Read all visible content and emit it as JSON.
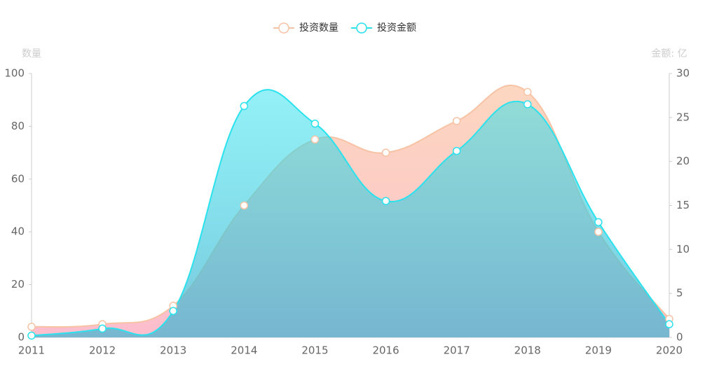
{
  "chart_data": {
    "type": "area",
    "categories": [
      "2011",
      "2012",
      "2013",
      "2014",
      "2015",
      "2016",
      "2017",
      "2018",
      "2019",
      "2020"
    ],
    "series": [
      {
        "name": "投资数量",
        "color": "#f7c3a4",
        "values": [
          4,
          5,
          12,
          50,
          75,
          70,
          82,
          93,
          40,
          7
        ]
      },
      {
        "name": "投资金额",
        "color": "#2ae2ee",
        "axis": "y2",
        "values": [
          0.2,
          1,
          3,
          26.3,
          24.3,
          15.5,
          21.2,
          26.5,
          13.1,
          1.5
        ]
      }
    ],
    "y_label": "数量",
    "y2_label": "金额: 亿",
    "ylim": [
      0,
      100
    ],
    "yticks": [
      0,
      20,
      40,
      60,
      80,
      100
    ],
    "y2lim": [
      0,
      30
    ],
    "y2ticks": [
      0,
      5,
      10,
      15,
      20,
      25,
      30
    ],
    "legend": "top"
  }
}
